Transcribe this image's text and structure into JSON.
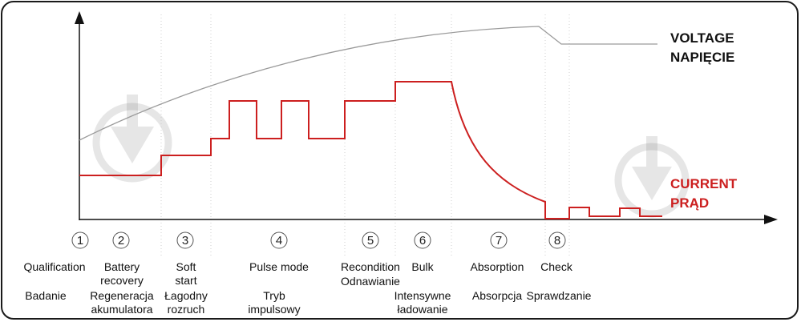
{
  "legend": {
    "voltage_en": "VOLTAGE",
    "voltage_pl": "NAPIĘCIE",
    "current_en": "CURRENT",
    "current_pl": "PRĄD",
    "voltage_color": "#9a9a9a",
    "current_color": "#cc1f1f"
  },
  "stages": [
    {
      "num": "1",
      "en": "Qualification",
      "pl": "Badanie"
    },
    {
      "num": "2",
      "en": "Battery\nrecovery",
      "pl": "Regeneracja\nakumulatora"
    },
    {
      "num": "3",
      "en": "Soft\nstart",
      "pl": "Łagodny\nrozruch"
    },
    {
      "num": "4",
      "en": "Pulse mode",
      "pl": "Tryb\nimpulsowy"
    },
    {
      "num": "5",
      "en": "Recondition",
      "pl": "Odnawianie"
    },
    {
      "num": "6",
      "en": "Bulk",
      "pl": "Intensywne\nładowanie"
    },
    {
      "num": "7",
      "en": "Absorption",
      "pl": "Absorpcja"
    },
    {
      "num": "8",
      "en": "Check",
      "pl": "Sprawdzanie"
    }
  ],
  "watermark_icon": "download-circle-icon"
}
